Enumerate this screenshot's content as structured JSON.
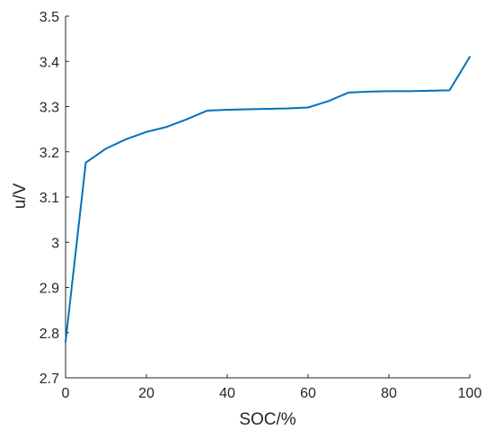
{
  "chart_data": {
    "type": "line",
    "title": "",
    "xlabel": "SOC/%",
    "ylabel": "u/V",
    "xlim": [
      0,
      100
    ],
    "ylim": [
      2.7,
      3.5
    ],
    "xticks": [
      "0",
      "20",
      "40",
      "60",
      "80",
      "100"
    ],
    "yticks": [
      "2.7",
      "2.8",
      "2.9",
      "3",
      "3.1",
      "3.2",
      "3.3",
      "3.4",
      "3.5"
    ],
    "grid": false,
    "legend": "none",
    "series": [
      {
        "color": "#0072BD",
        "x": [
          0,
          5,
          10,
          15,
          20,
          25,
          30,
          35,
          40,
          45,
          50,
          55,
          60,
          65,
          70,
          75,
          80,
          85,
          90,
          95,
          100
        ],
        "y": [
          2.78,
          3.176,
          3.207,
          3.228,
          3.244,
          3.255,
          3.272,
          3.291,
          3.293,
          3.294,
          3.295,
          3.296,
          3.298,
          3.312,
          3.331,
          3.333,
          3.334,
          3.334,
          3.335,
          3.336,
          3.41
        ]
      }
    ]
  }
}
